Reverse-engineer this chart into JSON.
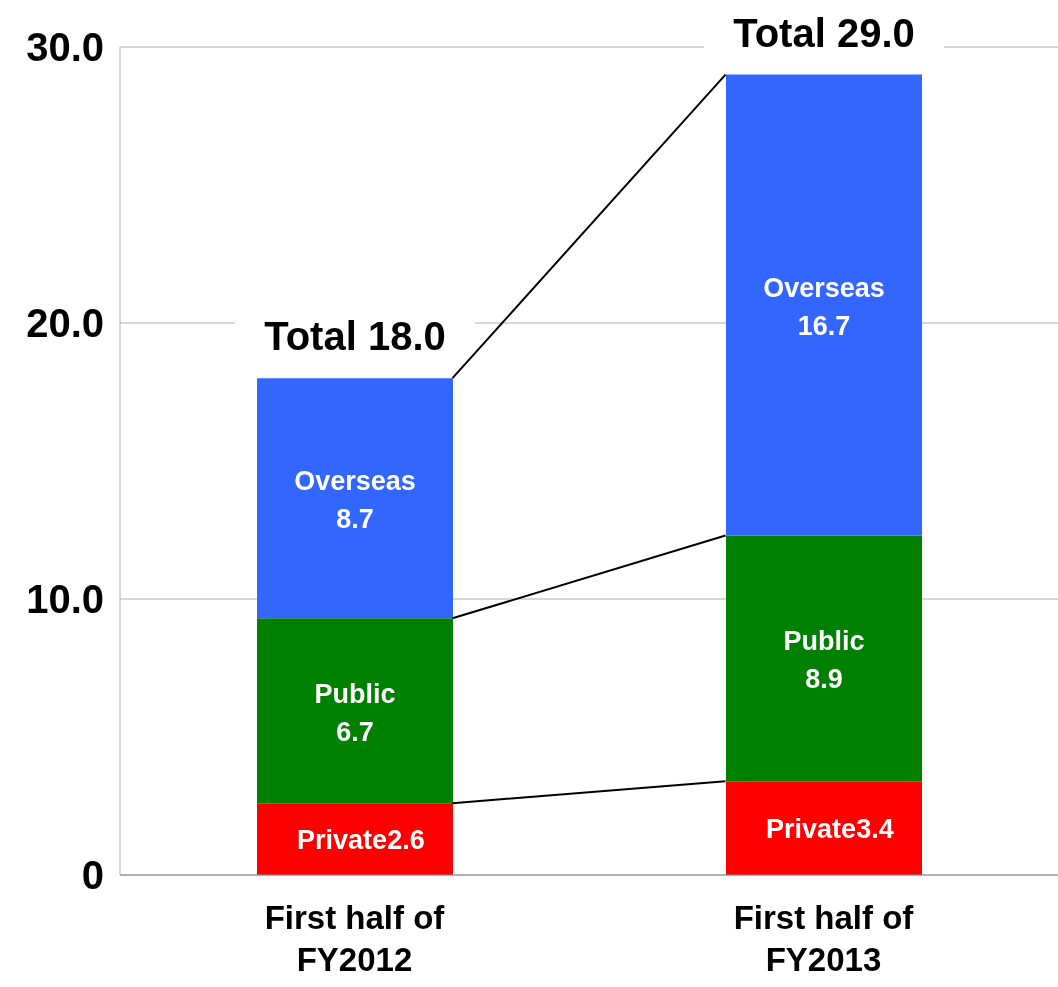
{
  "chart_data": {
    "type": "bar",
    "stacked": true,
    "categories": [
      "First half of FY2012",
      "First half of FY2013"
    ],
    "series": [
      {
        "name": "Private",
        "color": "#ff0000",
        "values": [
          2.6,
          3.4
        ]
      },
      {
        "name": "Public",
        "color": "#008000",
        "values": [
          6.7,
          8.9
        ]
      },
      {
        "name": "Overseas",
        "color": "#3366ff",
        "values": [
          8.7,
          16.7
        ]
      }
    ],
    "totals": [
      "Total 18.0",
      "Total 29.0"
    ],
    "data_labels": true,
    "ylim": [
      0,
      30
    ],
    "yticks": [
      {
        "value": 0,
        "label": "0"
      },
      {
        "value": 10,
        "label": "10.0"
      },
      {
        "value": 20,
        "label": "20.0"
      },
      {
        "value": 30,
        "label": "30.0"
      }
    ],
    "grid": "y",
    "legend": false
  }
}
